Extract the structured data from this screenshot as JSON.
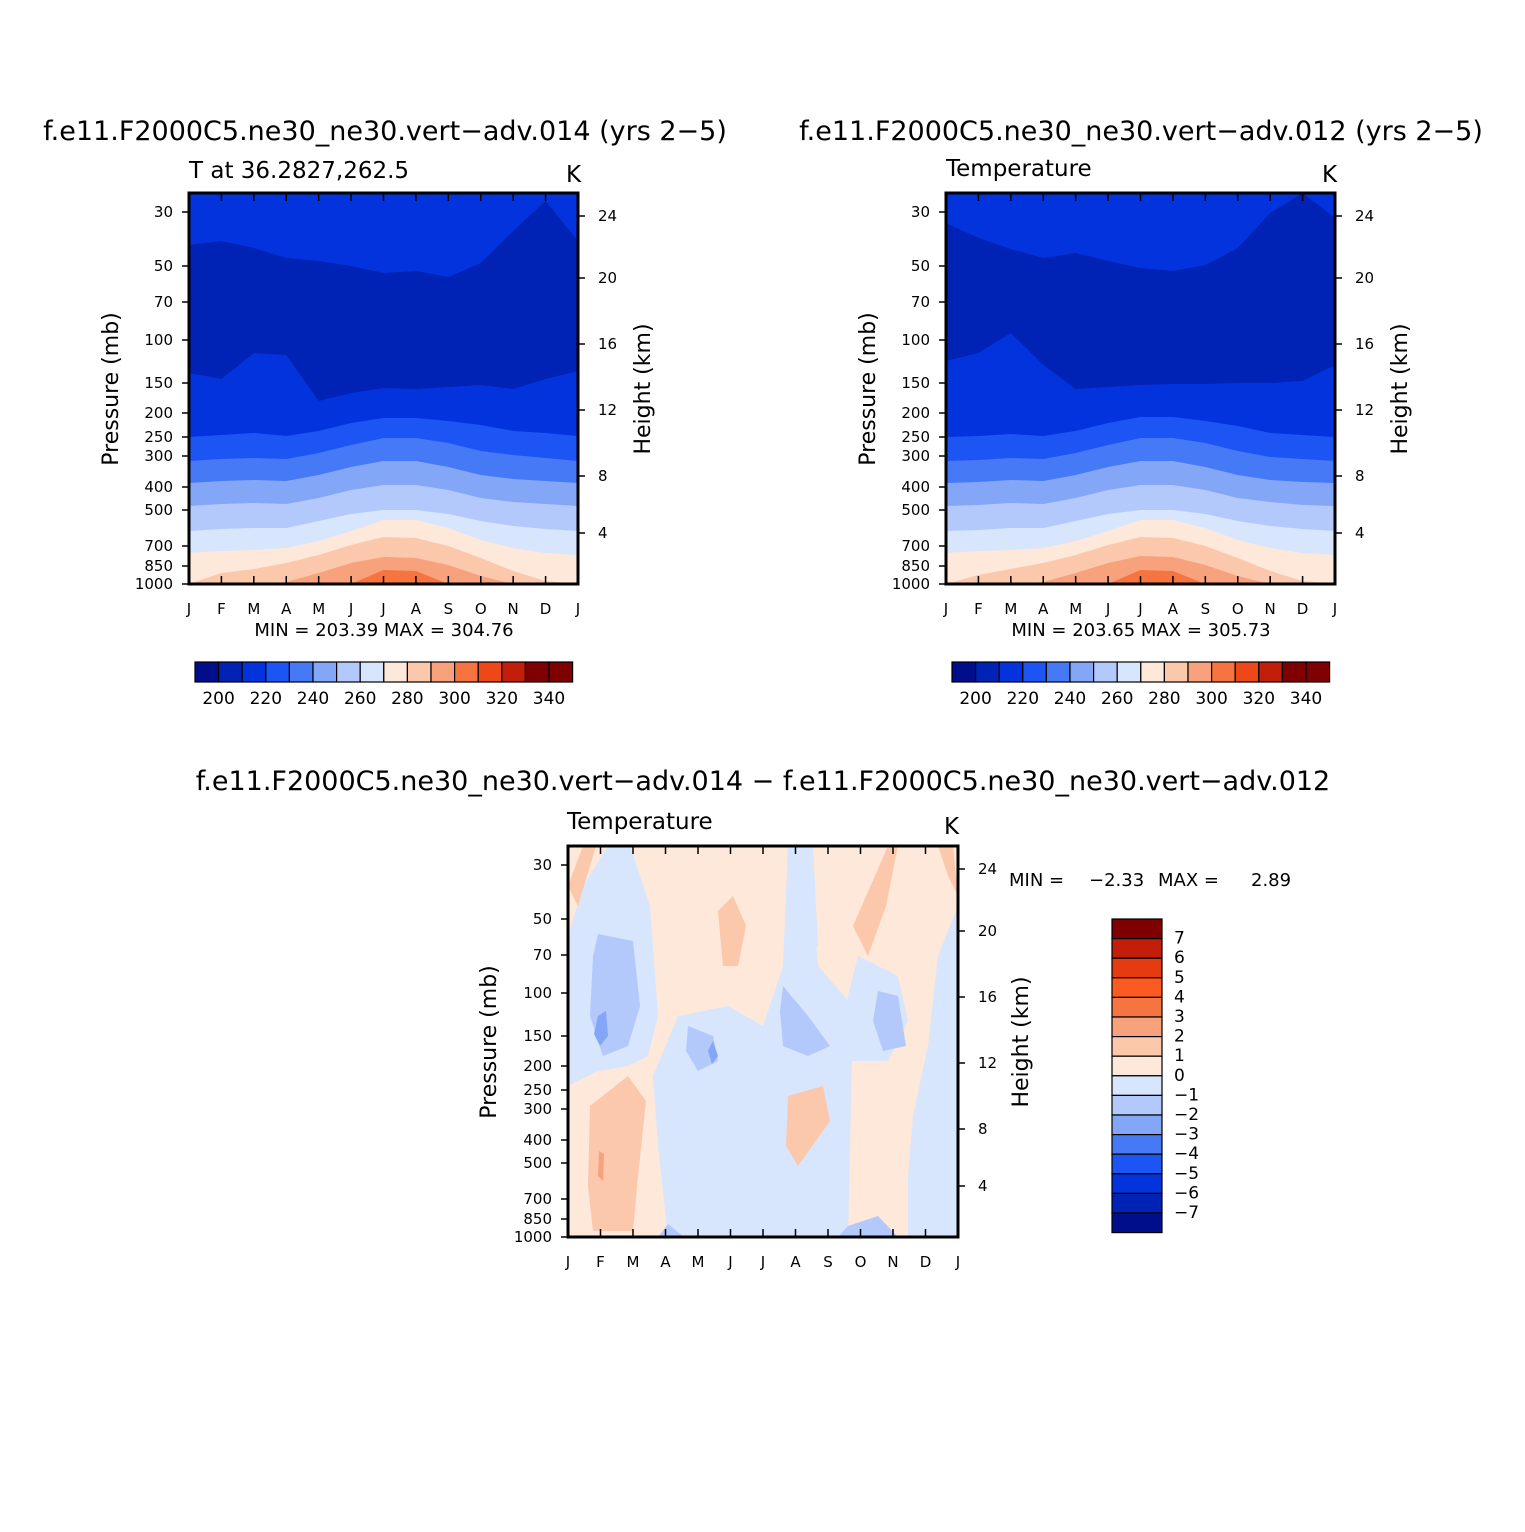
{
  "colors": {
    "palette_abs": [
      "#000e8c",
      "#0022b5",
      "#0333dd",
      "#1d55f5",
      "#4579f5",
      "#84a6f7",
      "#b3c9fb",
      "#d7e6fd",
      "#fde8da",
      "#fbc8ac",
      "#f8a27d",
      "#f6743f",
      "#ee4718",
      "#c21e09",
      "#7e0000"
    ],
    "palette_diff": [
      "#000e8c",
      "#0022b5",
      "#0333dd",
      "#1d55f5",
      "#4579f5",
      "#84a6f7",
      "#b3c9fb",
      "#d7e6fd",
      "#fde8da",
      "#fbc8ac",
      "#f8a27d",
      "#f6743f",
      "#fc5a23",
      "#e63b10",
      "#c21e09",
      "#7e0000"
    ],
    "axis": "#000000",
    "background": "#ffffff"
  },
  "chart_data": [
    {
      "type": "heatmap",
      "panel": "top-left",
      "title": "f.e11.F2000C5.ne30_ne30.vert−adv.014 (yrs 2−5)",
      "subtitle_left": "T at 36.2827,262.5",
      "subtitle_right": "K",
      "ylabel": "Pressure (mb)",
      "y2label": "Height (km)",
      "xticks": [
        "J",
        "F",
        "M",
        "A",
        "M",
        "J",
        "J",
        "A",
        "S",
        "O",
        "N",
        "D",
        "J"
      ],
      "yticks": [
        "30",
        "50",
        "70",
        "100",
        "150",
        "200",
        "250",
        "300",
        "400",
        "500",
        "700",
        "850",
        "1000"
      ],
      "y2ticks": [
        "24",
        "20",
        "16",
        "12",
        "8",
        "4"
      ],
      "stats": "MIN = 203.39 MAX = 304.76",
      "colorbar_ticks": [
        "200",
        "220",
        "240",
        "260",
        "280",
        "300",
        "320",
        "340"
      ],
      "colorbar_levels": [
        190,
        200,
        210,
        220,
        230,
        240,
        250,
        260,
        270,
        280,
        290,
        300,
        310,
        320,
        330,
        340
      ],
      "min": 203.39,
      "max": 304.76
    },
    {
      "type": "heatmap",
      "panel": "top-right",
      "title": "f.e11.F2000C5.ne30_ne30.vert−adv.012 (yrs 2−5)",
      "subtitle_left": "Temperature",
      "subtitle_right": "K",
      "ylabel": "Pressure (mb)",
      "y2label": "Height (km)",
      "xticks": [
        "J",
        "F",
        "M",
        "A",
        "M",
        "J",
        "J",
        "A",
        "S",
        "O",
        "N",
        "D",
        "J"
      ],
      "yticks": [
        "30",
        "50",
        "70",
        "100",
        "150",
        "200",
        "250",
        "300",
        "400",
        "500",
        "700",
        "850",
        "1000"
      ],
      "y2ticks": [
        "24",
        "20",
        "16",
        "12",
        "8",
        "4"
      ],
      "stats": "MIN = 203.65 MAX = 305.73",
      "colorbar_ticks": [
        "200",
        "220",
        "240",
        "260",
        "280",
        "300",
        "320",
        "340"
      ],
      "colorbar_levels": [
        190,
        200,
        210,
        220,
        230,
        240,
        250,
        260,
        270,
        280,
        290,
        300,
        310,
        320,
        330,
        340
      ],
      "min": 203.65,
      "max": 305.73
    },
    {
      "type": "heatmap",
      "panel": "bottom",
      "title": "f.e11.F2000C5.ne30_ne30.vert−adv.014 − f.e11.F2000C5.ne30_ne30.vert−adv.012",
      "subtitle_left": "Temperature",
      "subtitle_right": "K",
      "ylabel": "Pressure (mb)",
      "y2label": "Height (km)",
      "xticks": [
        "J",
        "F",
        "M",
        "A",
        "M",
        "J",
        "J",
        "A",
        "S",
        "O",
        "N",
        "D",
        "J"
      ],
      "yticks": [
        "30",
        "50",
        "70",
        "100",
        "150",
        "200",
        "250",
        "300",
        "400",
        "500",
        "700",
        "850",
        "1000"
      ],
      "y2ticks": [
        "24",
        "20",
        "16",
        "12",
        "8",
        "4"
      ],
      "stats_min_label": "MIN =",
      "stats_min_value": "−2.33",
      "stats_max_label": "MAX =",
      "stats_max_value": "2.89",
      "colorbar_ticks": [
        "7",
        "6",
        "5",
        "4",
        "3",
        "2",
        "1",
        "0",
        "−1",
        "−2",
        "−3",
        "−4",
        "−5",
        "−6",
        "−7"
      ],
      "min": -2.33,
      "max": 2.89
    }
  ]
}
